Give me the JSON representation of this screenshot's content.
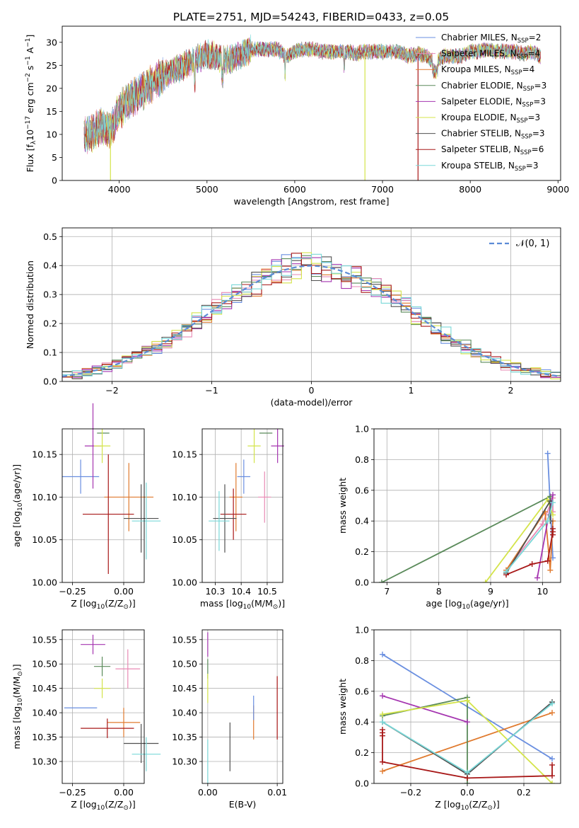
{
  "title": "PLATE=2751, MJD=54243, FIBERID=0433, z=0.05",
  "colors": [
    "#6a8fe0",
    "#e88ab4",
    "#e07a2e",
    "#5a8a5a",
    "#a535b0",
    "#d4e44a",
    "#505050",
    "#a81818",
    "#7ad8d8"
  ],
  "legend": [
    {
      "prefix": "Chabrier MILES, N",
      "sub": "SSP",
      "suffix": "=2",
      "color": "#6a8fe0"
    },
    {
      "prefix": "Salpeter MILES, N",
      "sub": "SSP",
      "suffix": "=4",
      "color": "#e88ab4"
    },
    {
      "prefix": "Kroupa MILES, N",
      "sub": "SSP",
      "suffix": "=4",
      "color": "#e07a2e"
    },
    {
      "prefix": "Chabrier ELODIE, N",
      "sub": "SSP",
      "suffix": "=3",
      "color": "#5a8a5a"
    },
    {
      "prefix": "Salpeter ELODIE, N",
      "sub": "SSP",
      "suffix": "=3",
      "color": "#a535b0"
    },
    {
      "prefix": "Kroupa ELODIE, N",
      "sub": "SSP",
      "suffix": "=3",
      "color": "#d4e44a"
    },
    {
      "prefix": "Chabrier STELIB, N",
      "sub": "SSP",
      "suffix": "=3",
      "color": "#505050"
    },
    {
      "prefix": "Salpeter STELIB, N",
      "sub": "SSP",
      "suffix": "=6",
      "color": "#a81818"
    },
    {
      "prefix": "Kroupa STELIB, N",
      "sub": "SSP",
      "suffix": "=3",
      "color": "#7ad8d8"
    }
  ],
  "chart_data": [
    {
      "id": "spectrum",
      "type": "line",
      "xlabel": "wavelength [Angstrom, rest frame]",
      "ylabel_parts": [
        "Flux [f",
        "λ",
        "10",
        "−17",
        " erg cm",
        "−2",
        " s",
        "−1",
        " A",
        "−1",
        "]"
      ],
      "xlim": [
        3350,
        9030
      ],
      "ylim": [
        0,
        33.5
      ],
      "xticks": [
        4000,
        5000,
        6000,
        7000,
        8000,
        9000
      ],
      "yticks": [
        0,
        5,
        10,
        15,
        20,
        25,
        30
      ],
      "grid": false,
      "legend_position": "upper-right",
      "envelope": {
        "x": [
          3600,
          3700,
          3800,
          3900,
          4000,
          4100,
          4200,
          4300,
          4400,
          4500,
          4600,
          4700,
          4800,
          4900,
          5000,
          5100,
          5200,
          5300,
          5400,
          5500,
          5600,
          5700,
          5800,
          5900,
          6000,
          6100,
          6200,
          6300,
          6400,
          6500,
          6600,
          6700,
          6800,
          6900,
          7000,
          7100,
          7200,
          7300,
          7400,
          7500,
          7600,
          7700,
          7800,
          7900,
          8000,
          8100,
          8200,
          8300,
          8400,
          8500,
          8600,
          8700,
          8800
        ],
        "y": [
          9.5,
          10.5,
          12.0,
          11.0,
          15.0,
          17.5,
          18.5,
          20.0,
          21.5,
          22.5,
          24.0,
          24.5,
          25.5,
          26.5,
          27.5,
          27.0,
          26.0,
          26.5,
          27.5,
          28.5,
          28.5,
          28.5,
          28.5,
          27.0,
          28.0,
          28.5,
          28.5,
          28.0,
          28.0,
          28.0,
          28.0,
          27.5,
          28.0,
          28.0,
          28.0,
          28.0,
          28.0,
          27.0,
          27.5,
          27.0,
          25.5,
          27.0,
          27.0,
          27.0,
          28.0,
          28.0,
          28.5,
          28.0,
          28.0,
          28.0,
          27.5,
          28.0,
          27.0
        ]
      },
      "dropouts": [
        {
          "x": 3900,
          "color": "#d4e44a"
        },
        {
          "x": 6800,
          "color": "#d4e44a"
        },
        {
          "x": 7405,
          "color": "#a81818"
        }
      ]
    },
    {
      "id": "residuals",
      "type": "step",
      "xlabel": "(data-model)/error",
      "ylabel": "Normed distribution",
      "xlim": [
        -2.5,
        2.5
      ],
      "ylim": [
        0,
        0.53
      ],
      "xticks": [
        -2,
        -1,
        0,
        1,
        2
      ],
      "yticks": [
        0.0,
        0.1,
        0.2,
        0.3,
        0.4,
        0.5
      ],
      "grid": true,
      "legend": {
        "label": "𝒩(0, 1)",
        "color": "#5b8bd6",
        "position": "upper-right"
      },
      "bins": {
        "start": -2.5,
        "width": 0.1,
        "count": 50
      }
    },
    {
      "id": "age-vs-Z",
      "type": "errorbar",
      "xlabel_parts": [
        "Z [log",
        "10",
        "(Z/Z",
        "⊙",
        ")]"
      ],
      "ylabel_parts": [
        "age  [log",
        "10",
        "(age/yr)]"
      ],
      "xlim": [
        -0.3,
        0.1
      ],
      "ylim": [
        10.0,
        10.18
      ],
      "xticks": [
        -0.25,
        0.0
      ],
      "yticks": [
        10.0,
        10.05,
        10.1,
        10.15
      ],
      "grid": true,
      "points": [
        {
          "x": -0.21,
          "xerr": 0.09,
          "y": 10.124,
          "yerr": 0.02,
          "color": "#6a8fe0"
        },
        {
          "x": -0.1,
          "xerr": 0.03,
          "y": 10.175,
          "yerr": 0.0,
          "color": "#5a8a5a"
        },
        {
          "x": -0.15,
          "xerr": 0.04,
          "y": 10.16,
          "yerr": 0.05,
          "color": "#a535b0"
        },
        {
          "x": -0.105,
          "xerr": 0.04,
          "y": 10.16,
          "yerr": 0.02,
          "color": "#d4e44a"
        },
        {
          "x": 0.025,
          "xerr": 0.12,
          "y": 10.1,
          "yerr": 0.04,
          "color": "#e07a2e"
        },
        {
          "x": -0.075,
          "xerr": 0.125,
          "y": 10.08,
          "yerr": 0.07,
          "color": "#a81818"
        },
        {
          "x": 0.085,
          "xerr": 0.085,
          "y": 10.075,
          "yerr": 0.04,
          "color": "#505050"
        },
        {
          "x": 0.11,
          "xerr": 0.07,
          "y": 10.072,
          "yerr": 0.045,
          "color": "#7ad8d8"
        }
      ]
    },
    {
      "id": "age-vs-mass",
      "type": "errorbar",
      "xlabel_parts": [
        "mass [log",
        "10",
        "(M/M",
        "⊙",
        ")]"
      ],
      "xlim": [
        10.25,
        10.56
      ],
      "ylim": [
        10.0,
        10.18
      ],
      "xticks": [
        10.3,
        10.4,
        10.5
      ],
      "yticks": [
        10.0,
        10.05,
        10.1,
        10.15
      ],
      "grid": true,
      "points": [
        {
          "x": 10.41,
          "xerr": 0.025,
          "y": 10.124,
          "yerr": 0.02,
          "color": "#6a8fe0"
        },
        {
          "x": 10.495,
          "xerr": 0.025,
          "y": 10.175,
          "yerr": 0.0,
          "color": "#5a8a5a"
        },
        {
          "x": 10.54,
          "xerr": 0.025,
          "y": 10.16,
          "yerr": 0.02,
          "color": "#a535b0"
        },
        {
          "x": 10.45,
          "xerr": 0.025,
          "y": 10.16,
          "yerr": 0.02,
          "color": "#d4e44a"
        },
        {
          "x": 10.49,
          "xerr": 0.025,
          "y": 10.1,
          "yerr": 0.03,
          "color": "#e88ab4"
        },
        {
          "x": 10.38,
          "xerr": 0.025,
          "y": 10.1,
          "yerr": 0.04,
          "color": "#e07a2e"
        },
        {
          "x": 10.37,
          "xerr": 0.05,
          "y": 10.08,
          "yerr": 0.03,
          "color": "#a81818"
        },
        {
          "x": 10.337,
          "xerr": 0.045,
          "y": 10.075,
          "yerr": 0.04,
          "color": "#505050"
        },
        {
          "x": 10.315,
          "xerr": 0.04,
          "y": 10.072,
          "yerr": 0.035,
          "color": "#7ad8d8"
        }
      ]
    },
    {
      "id": "weight-vs-age",
      "type": "line",
      "xlabel_parts": [
        "age  [log",
        "10",
        "(age/yr)]"
      ],
      "ylabel": "mass weight",
      "xlim": [
        6.75,
        10.35
      ],
      "ylim": [
        0.0,
        1.0
      ],
      "xticks": [
        7,
        8,
        9,
        10
      ],
      "yticks": [
        0.0,
        0.2,
        0.4,
        0.6,
        0.8,
        1.0
      ],
      "grid": true,
      "series": [
        {
          "color": "#6a8fe0",
          "x": [
            10.1,
            10.2
          ],
          "y": [
            0.84,
            0.16
          ]
        },
        {
          "color": "#e88ab4",
          "x": [
            9.3,
            10.0,
            10.2,
            10.2
          ],
          "y": [
            0.08,
            0.38,
            0.55,
            0.46
          ]
        },
        {
          "color": "#e07a2e",
          "x": [
            9.3,
            10.05,
            10.15,
            10.2
          ],
          "y": [
            0.08,
            0.46,
            0.08,
            0.4
          ]
        },
        {
          "color": "#5a8a5a",
          "x": [
            6.9,
            10.15,
            10.15
          ],
          "y": [
            0.0,
            0.56,
            0.44
          ]
        },
        {
          "color": "#a535b0",
          "x": [
            9.9,
            10.1,
            10.2
          ],
          "y": [
            0.03,
            0.4,
            0.57
          ]
        },
        {
          "color": "#d4e44a",
          "x": [
            8.9,
            10.1,
            10.2
          ],
          "y": [
            0.0,
            0.54,
            0.44
          ]
        },
        {
          "color": "#505050",
          "x": [
            9.3,
            10.15,
            10.15
          ],
          "y": [
            0.06,
            0.53,
            0.4
          ]
        },
        {
          "color": "#a81818",
          "x": [
            9.3,
            9.8,
            10.1,
            10.2,
            10.2,
            10.2
          ],
          "y": [
            0.05,
            0.12,
            0.14,
            0.33,
            0.35,
            0.31
          ]
        },
        {
          "color": "#7ad8d8",
          "x": [
            9.3,
            10.1,
            10.2
          ],
          "y": [
            0.07,
            0.4,
            0.52
          ]
        }
      ]
    },
    {
      "id": "mass-vs-Z",
      "type": "errorbar",
      "xlabel_parts": [
        "Z [log",
        "10",
        "(Z/Z",
        "⊙",
        ")]"
      ],
      "ylabel_parts": [
        "mass [log",
        "10",
        "(M/M",
        "⊙",
        ")]"
      ],
      "xlim": [
        -0.3,
        0.1
      ],
      "ylim": [
        10.255,
        10.57
      ],
      "xticks": [
        -0.25,
        0.0
      ],
      "yticks": [
        10.3,
        10.35,
        10.4,
        10.45,
        10.5,
        10.55
      ],
      "grid": true,
      "points": [
        {
          "x": -0.21,
          "xerr": 0.08,
          "y": 10.41,
          "yerr": 0.0,
          "color": "#6a8fe0"
        },
        {
          "x": -0.105,
          "xerr": 0.04,
          "y": 10.495,
          "yerr": 0.02,
          "color": "#5a8a5a"
        },
        {
          "x": -0.15,
          "xerr": 0.06,
          "y": 10.54,
          "yerr": 0.02,
          "color": "#a535b0"
        },
        {
          "x": -0.105,
          "xerr": 0.04,
          "y": 10.45,
          "yerr": 0.02,
          "color": "#d4e44a"
        },
        {
          "x": 0.02,
          "xerr": 0.06,
          "y": 10.49,
          "yerr": 0.04,
          "color": "#e88ab4"
        },
        {
          "x": 0.0,
          "xerr": 0.08,
          "y": 10.38,
          "yerr": 0.03,
          "color": "#e07a2e"
        },
        {
          "x": -0.08,
          "xerr": 0.13,
          "y": 10.368,
          "yerr": 0.02,
          "color": "#a81818"
        },
        {
          "x": 0.085,
          "xerr": 0.085,
          "y": 10.337,
          "yerr": 0.04,
          "color": "#505050"
        },
        {
          "x": 0.11,
          "xerr": 0.07,
          "y": 10.315,
          "yerr": 0.035,
          "color": "#7ad8d8"
        }
      ]
    },
    {
      "id": "mass-vs-ebv",
      "type": "errorbar",
      "xlabel": "E(B-V)",
      "xlim": [
        -0.0008,
        0.0108
      ],
      "ylim": [
        10.255,
        10.57
      ],
      "xticks": [
        0.0,
        0.01
      ],
      "xtick_labels": [
        "0.00",
        "0.01"
      ],
      "yticks": [
        10.3,
        10.35,
        10.4,
        10.45,
        10.5,
        10.55
      ],
      "grid": true,
      "points": [
        {
          "x": 0.0,
          "xerr": 0,
          "y": 10.54,
          "yerr": 0.025,
          "color": "#a535b0"
        },
        {
          "x": 0.0,
          "xerr": 0,
          "y": 10.49,
          "yerr": 0.02,
          "color": "#5a8a5a"
        },
        {
          "x": 0.0,
          "xerr": 0,
          "y": 10.45,
          "yerr": 0.03,
          "color": "#d4e44a"
        },
        {
          "x": 0.0,
          "xerr": 0,
          "y": 10.3,
          "yerr": 0.045,
          "color": "#7ad8d8"
        },
        {
          "x": 0.0032,
          "xerr": 0,
          "y": 10.33,
          "yerr": 0.05,
          "color": "#505050"
        },
        {
          "x": 0.0066,
          "xerr": 0,
          "y": 10.38,
          "yerr": 0.035,
          "color": "#e07a2e"
        },
        {
          "x": 0.0066,
          "xerr": 0,
          "y": 10.41,
          "yerr": 0.025,
          "color": "#6a8fe0"
        },
        {
          "x": 0.01,
          "xerr": 0,
          "y": 10.41,
          "yerr": 0.065,
          "color": "#a81818"
        }
      ]
    },
    {
      "id": "weight-vs-Z",
      "type": "line",
      "xlabel_parts": [
        "Z [log",
        "10",
        "(Z/Z",
        "⊙",
        ")]"
      ],
      "ylabel": "mass weight",
      "xlim": [
        -0.33,
        0.33
      ],
      "ylim": [
        0.0,
        1.0
      ],
      "xticks": [
        -0.2,
        0.0,
        0.2
      ],
      "yticks": [
        0.0,
        0.2,
        0.4,
        0.6,
        0.8,
        1.0
      ],
      "grid": true,
      "series": [
        {
          "color": "#6a8fe0",
          "x": [
            -0.3,
            0.3
          ],
          "y": [
            0.84,
            0.16
          ]
        },
        {
          "color": "#e07a2e",
          "x": [
            -0.3,
            0.3
          ],
          "y": [
            0.08,
            0.46
          ]
        },
        {
          "color": "#5a8a5a",
          "x": [
            -0.3,
            0.0,
            0.0
          ],
          "y": [
            0.44,
            0.56,
            0.0
          ]
        },
        {
          "color": "#a535b0",
          "x": [
            -0.3,
            0.0
          ],
          "y": [
            0.57,
            0.4
          ]
        },
        {
          "color": "#d4e44a",
          "x": [
            -0.3,
            0.0,
            0.3
          ],
          "y": [
            0.45,
            0.54,
            0.0
          ]
        },
        {
          "color": "#505050",
          "x": [
            -0.3,
            0.0,
            0.3
          ],
          "y": [
            0.4,
            0.06,
            0.53
          ]
        },
        {
          "color": "#7ad8d8",
          "x": [
            -0.3,
            0.0,
            0.3
          ],
          "y": [
            0.4,
            0.07,
            0.52
          ]
        },
        {
          "color": "#a81818",
          "x": [
            -0.3,
            -0.3,
            -0.3,
            -0.3,
            0.0,
            0.3,
            0.3
          ],
          "y": [
            0.33,
            0.31,
            0.35,
            0.14,
            0.035,
            0.05,
            0.12
          ]
        }
      ]
    }
  ]
}
